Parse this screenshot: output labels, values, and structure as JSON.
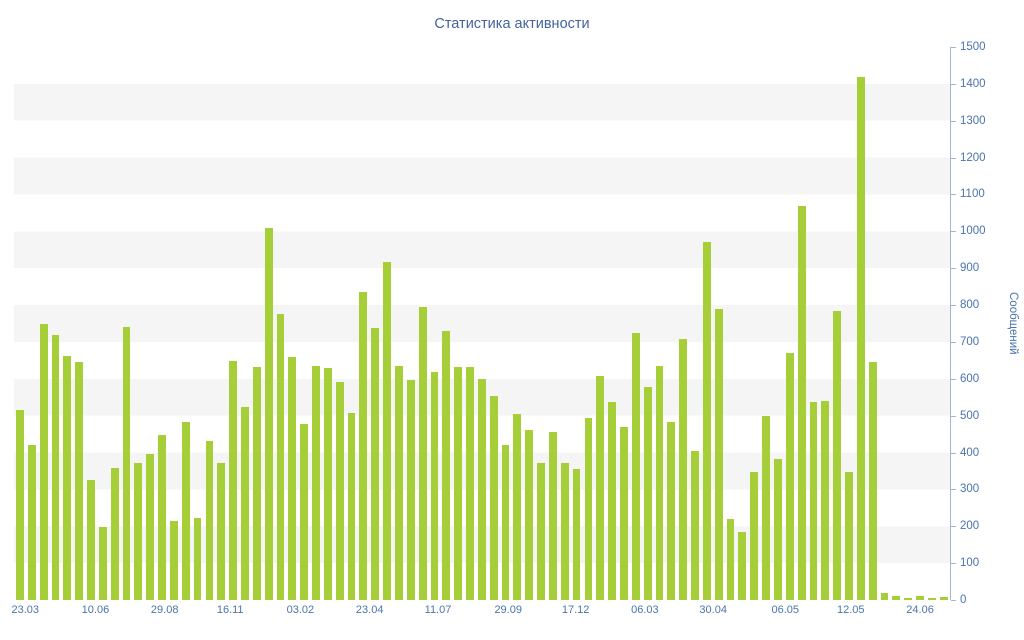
{
  "chart_data": {
    "type": "bar",
    "title": "Статистика активности",
    "ylabel": "Сообщений",
    "xlabel": "",
    "ylim": [
      0,
      1500
    ],
    "ytick_step": 100,
    "yticks": [
      0,
      100,
      200,
      300,
      400,
      500,
      600,
      700,
      800,
      900,
      1000,
      1100,
      1200,
      1300,
      1400,
      1500
    ],
    "grid": "alternating-horizontal-bands",
    "legend": false,
    "bar_color": "#a6ce38",
    "title_color": "#44639e",
    "axis_text_color": "#4a74ad",
    "axis_line_color": "#9db8d4",
    "stripe_color": "#f5f5f5",
    "x_tick_labels": [
      {
        "label": "23.03",
        "pos": 0.012
      },
      {
        "label": "10.06",
        "pos": 0.087
      },
      {
        "label": "29.08",
        "pos": 0.161
      },
      {
        "label": "16.11",
        "pos": 0.231
      },
      {
        "label": "03.02",
        "pos": 0.306
      },
      {
        "label": "23.04",
        "pos": 0.38
      },
      {
        "label": "11.07",
        "pos": 0.453
      },
      {
        "label": "29.09",
        "pos": 0.528
      },
      {
        "label": "17.12",
        "pos": 0.6
      },
      {
        "label": "06.03",
        "pos": 0.674
      },
      {
        "label": "30.04",
        "pos": 0.747
      },
      {
        "label": "06.05",
        "pos": 0.824
      },
      {
        "label": "12.05",
        "pos": 0.894
      },
      {
        "label": "24.06",
        "pos": 0.968
      }
    ],
    "values": [
      515,
      420,
      748,
      718,
      663,
      646,
      326,
      197,
      357,
      740,
      371,
      397,
      447,
      215,
      484,
      222,
      430,
      371,
      649,
      524,
      632,
      1008,
      775,
      658,
      478,
      636,
      630,
      592,
      508,
      836,
      737,
      918,
      636,
      597,
      795,
      618,
      730,
      633,
      632,
      600,
      553,
      420,
      505,
      460,
      371,
      456,
      371,
      355,
      494,
      607,
      536,
      469,
      724,
      578,
      636,
      484,
      708,
      404,
      970,
      789,
      220,
      184,
      348,
      500,
      382,
      671,
      1068,
      536,
      540,
      785,
      348,
      1420,
      645,
      18,
      12,
      6,
      10,
      5,
      8
    ]
  }
}
